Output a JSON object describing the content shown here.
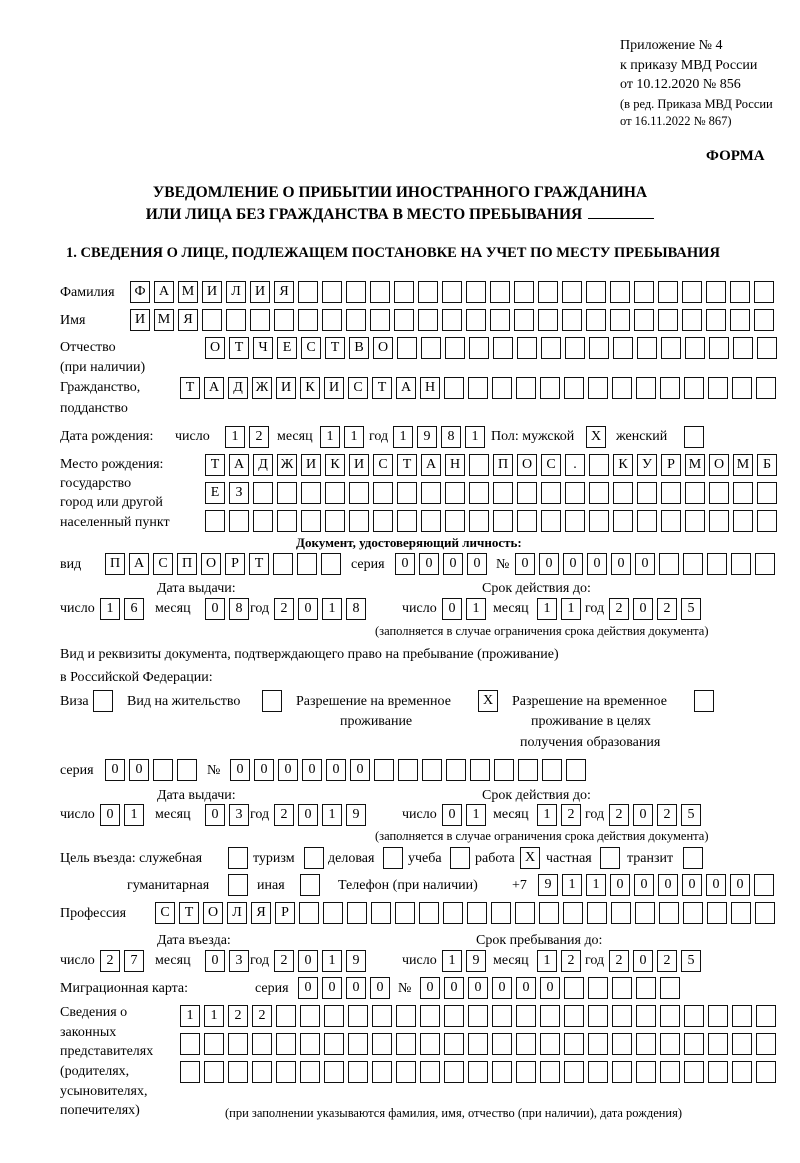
{
  "header": {
    "line1": "Приложение № 4",
    "line2": "к приказу МВД России",
    "line3": "от 10.12.2020 № 856",
    "line4": "(в ред. Приказа МВД России",
    "line5": "от 16.11.2022 № 867)",
    "forma": "ФОРМА"
  },
  "title": {
    "line1": "УВЕДОМЛЕНИЕ О ПРИБЫТИИ ИНОСТРАННОГО ГРАЖДАНИНА",
    "line2": "ИЛИ ЛИЦА БЕЗ ГРАЖДАНСТВА В МЕСТО ПРЕБЫВАНИЯ"
  },
  "section1": {
    "heading": "1. СВЕДЕНИЯ О ЛИЦЕ, ПОДЛЕЖАЩЕМ ПОСТАНОВКЕ НА УЧЕТ ПО МЕСТУ ПРЕБЫВАНИЯ",
    "check_mark": "X",
    "surname": {
      "label": "Фамилия",
      "value": "ФАМИЛИЯ"
    },
    "name": {
      "label": "Имя",
      "value": "ИМЯ"
    },
    "patronymic": {
      "label": "Отчество",
      "label2": "(при наличии)",
      "value": "ОТЧЕСТВО"
    },
    "citizenship": {
      "label": "Гражданство,",
      "label2": "подданство",
      "value": "ТАДЖИКИСТАН"
    },
    "birth_date": {
      "label": "Дата рождения:",
      "day_label": "число",
      "month_label": "месяц",
      "year_label": "год",
      "day": "12",
      "month": "11",
      "year": "1981"
    },
    "sex": {
      "label": "Пол: мужской",
      "female_label": "женский",
      "male": true,
      "female": false
    },
    "birth_place": {
      "label1": "Место рождения:",
      "label2": "государство",
      "label3": "город или другой",
      "label4": "населенный пункт",
      "row1": "ТАДЖИКИСТАН ПОС. КУРМОМБ",
      "row2": "ЕЗ",
      "row3": ""
    },
    "id_doc": {
      "heading": "Документ, удостоверяющий личность:",
      "kind_label": "вид",
      "kind": "ПАСПОРТ",
      "series_label": "серия",
      "series": "0000",
      "number_label": "№",
      "number": "000000",
      "issue_label": "Дата выдачи:",
      "valid_label": "Срок действия до:",
      "day_label": "число",
      "month_label": "месяц",
      "year_label": "год",
      "issue_day": "16",
      "issue_month": "08",
      "issue_year": "2018",
      "valid_day": "01",
      "valid_month": "11",
      "valid_year": "2025",
      "note": "(заполняется в случае ограничения срока действия документа)"
    },
    "stay_doc": {
      "intro1": "Вид и реквизиты документа, подтверждающего право на пребывание (проживание)",
      "intro2": "в Российской Федерации:",
      "visa_label": "Виза",
      "visa": false,
      "residence_label": "Вид на жительство",
      "residence": false,
      "temp_label1": "Разрешение на временное",
      "temp_label2": "проживание",
      "temp": true,
      "edu_label1": "Разрешение на временное",
      "edu_label2": "проживание в целях",
      "edu_label3": "получения образования",
      "edu": false,
      "series_label": "серия",
      "series": "00",
      "number_label": "№",
      "number": "000000",
      "issue_label": "Дата выдачи:",
      "valid_label": "Срок действия до:",
      "day_label": "число",
      "month_label": "месяц",
      "year_label": "год",
      "issue_day": "01",
      "issue_month": "03",
      "issue_year": "2019",
      "valid_day": "01",
      "valid_month": "12",
      "valid_year": "2025",
      "note": "(заполняется в случае ограничения срока действия документа)"
    },
    "purpose": {
      "label": "Цель въезда: служебная",
      "official": false,
      "tourism_label": "туризм",
      "tourism": false,
      "business_label": "деловая",
      "business": false,
      "study_label": "учеба",
      "study": false,
      "work_label": "работа",
      "work": true,
      "private_label": "частная",
      "private": false,
      "transit_label": "транзит",
      "transit": false,
      "humanitarian_label": "гуманитарная",
      "humanitarian": false,
      "other_label": "иная",
      "other": false
    },
    "phone": {
      "label": "Телефон (при наличии)",
      "prefix": "+7",
      "value": "911000000"
    },
    "profession": {
      "label": "Профессия",
      "value": "СТОЛЯР"
    },
    "entry": {
      "entry_label": "Дата въезда:",
      "stay_label": "Срок пребывания до:",
      "day_label": "число",
      "month_label": "месяц",
      "year_label": "год",
      "entry_day": "27",
      "entry_month": "03",
      "entry_year": "2019",
      "stay_day": "19",
      "stay_month": "12",
      "stay_year": "2025"
    },
    "migration_card": {
      "label": "Миграционная карта:",
      "series_label": "серия",
      "series": "0000",
      "number_label": "№",
      "number": "000000"
    },
    "representatives": {
      "label1": "Сведения о",
      "label2": "законных",
      "label3": "представителях",
      "label4": "(родителях,",
      "label5": "усыновителях,",
      "label6": "попечителях)",
      "row1": "1122",
      "row2": "",
      "row3": "",
      "note": "(при заполнении указываются фамилия, имя, отчество (при наличии), дата рождения)"
    }
  }
}
